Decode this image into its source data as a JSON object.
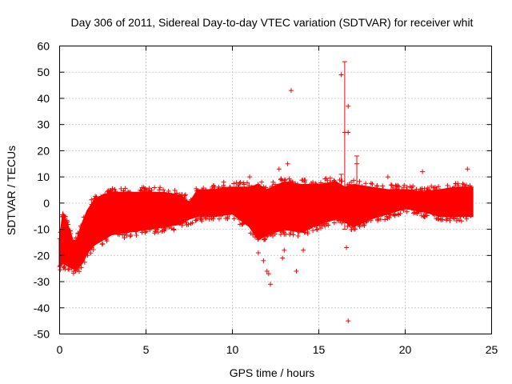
{
  "chart_data": {
    "type": "scatter",
    "title": "Day 306 of 2011, Sidereal Day-to-day VTEC variation (SDTVAR) for receiver whit",
    "xlabel": "GPS time / hours",
    "ylabel": "SDTVAR / TECUs",
    "xlim": [
      0,
      25
    ],
    "ylim": [
      -50,
      60
    ],
    "xticks": [
      0,
      5,
      10,
      15,
      20,
      25
    ],
    "xtick_labels": [
      "0",
      "5",
      "10",
      "15",
      "20",
      "25"
    ],
    "yticks": [
      -50,
      -40,
      -30,
      -20,
      -10,
      0,
      10,
      20,
      30,
      40,
      50,
      60
    ],
    "ytick_labels": [
      "-50",
      "-40",
      "-30",
      "-20",
      "-10",
      "0",
      "10",
      "20",
      "30",
      "40",
      "50",
      "60"
    ],
    "grid": true,
    "marker": "+",
    "color": "#ff0000",
    "series": [
      {
        "name": "SDTVAR",
        "band": {
          "x": [
            0.0,
            0.2,
            0.5,
            0.8,
            1.0,
            1.3,
            1.6,
            2.0,
            2.5,
            3.0,
            4.0,
            5.0,
            6.0,
            7.0,
            7.5,
            8.0,
            9.0,
            10.0,
            11.0,
            11.5,
            12.0,
            13.0,
            14.0,
            15.0,
            16.0,
            16.5,
            17.0,
            18.0,
            19.0,
            20.0,
            21.0,
            22.0,
            23.0,
            23.9
          ],
          "lower": [
            -24,
            -23,
            -24,
            -25,
            -25,
            -23,
            -19,
            -16,
            -14,
            -12,
            -11,
            -10,
            -9,
            -8,
            -6,
            -5,
            -5,
            -4,
            -9,
            -14,
            -12,
            -10,
            -11,
            -8,
            -6,
            -7,
            -9,
            -6,
            -4,
            -2,
            -3,
            -5,
            -5,
            -5
          ],
          "upper": [
            -14,
            -4,
            -9,
            -15,
            -14,
            -8,
            -3,
            1,
            3,
            4,
            4,
            4,
            4,
            3,
            0,
            5,
            5,
            6,
            6,
            7,
            5,
            8,
            7,
            7,
            8,
            6,
            7,
            6,
            5,
            5,
            4,
            5,
            6,
            6
          ]
        },
        "error_bars": [
          {
            "x": 16.5,
            "low": -10,
            "high": 54
          },
          {
            "x": 17.2,
            "low": 0,
            "high": 18
          },
          {
            "x": 16.3,
            "low": -2,
            "high": 11
          }
        ],
        "outliers": [
          {
            "x": 13.4,
            "y": 43
          },
          {
            "x": 16.3,
            "y": 49
          },
          {
            "x": 16.7,
            "y": 37
          },
          {
            "x": 16.7,
            "y": 27
          },
          {
            "x": 16.5,
            "y": 27
          },
          {
            "x": 16.7,
            "y": -45
          },
          {
            "x": 16.6,
            "y": -17
          },
          {
            "x": 13.7,
            "y": -26
          },
          {
            "x": 12.1,
            "y": -27
          },
          {
            "x": 12.2,
            "y": -31
          },
          {
            "x": 12.0,
            "y": -26
          },
          {
            "x": 11.8,
            "y": -22
          },
          {
            "x": 12.9,
            "y": -21
          },
          {
            "x": 13.0,
            "y": -18
          },
          {
            "x": 12.7,
            "y": 13
          },
          {
            "x": 13.2,
            "y": 15
          },
          {
            "x": 12.8,
            "y": 9
          },
          {
            "x": 14.1,
            "y": -18
          },
          {
            "x": 11.5,
            "y": -19
          },
          {
            "x": 17.2,
            "y": 15
          },
          {
            "x": 19.0,
            "y": 10
          },
          {
            "x": 21.0,
            "y": 12
          },
          {
            "x": 23.6,
            "y": 13
          },
          {
            "x": 9.5,
            "y": 8
          },
          {
            "x": 11.0,
            "y": 10
          },
          {
            "x": 0.2,
            "y": -5
          },
          {
            "x": 0.1,
            "y": -15
          },
          {
            "x": 0.1,
            "y": -20
          }
        ]
      }
    ]
  }
}
